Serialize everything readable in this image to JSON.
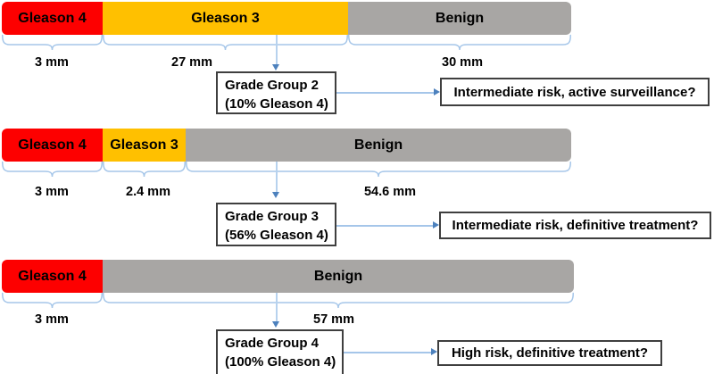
{
  "colors": {
    "gleason4": "#FD0000",
    "gleason3": "#FFC000",
    "benign": "#A8A6A4",
    "brace_blue": "#A5C6E9",
    "arrowhead_blue": "#4D81BD",
    "box_border": "#3F3F3F"
  },
  "rows": [
    {
      "bars": [
        {
          "label": "Gleason 4",
          "mm": "3 mm"
        },
        {
          "label": "Gleason 3",
          "mm": "27 mm"
        },
        {
          "label": "Benign",
          "mm": "30 mm"
        }
      ],
      "grade_group": {
        "line1": "Grade Group 2",
        "line2": "(10% Gleason 4)"
      },
      "risk": "Intermediate risk, active surveillance?"
    },
    {
      "bars": [
        {
          "label": "Gleason 4",
          "mm": "3 mm"
        },
        {
          "label": "Gleason 3",
          "mm": "2.4 mm"
        },
        {
          "label": "Benign",
          "mm": "54.6 mm"
        }
      ],
      "grade_group": {
        "line1": "Grade Group 3",
        "line2": "(56% Gleason 4)"
      },
      "risk": "Intermediate risk, definitive treatment?"
    },
    {
      "bars": [
        {
          "label": "Gleason 4",
          "mm": "3 mm"
        },
        {
          "label": "Benign",
          "mm": "57 mm"
        }
      ],
      "grade_group": {
        "line1": "Grade Group 4",
        "line2": "(100% Gleason 4)"
      },
      "risk": "High risk, definitive treatment?"
    }
  ]
}
